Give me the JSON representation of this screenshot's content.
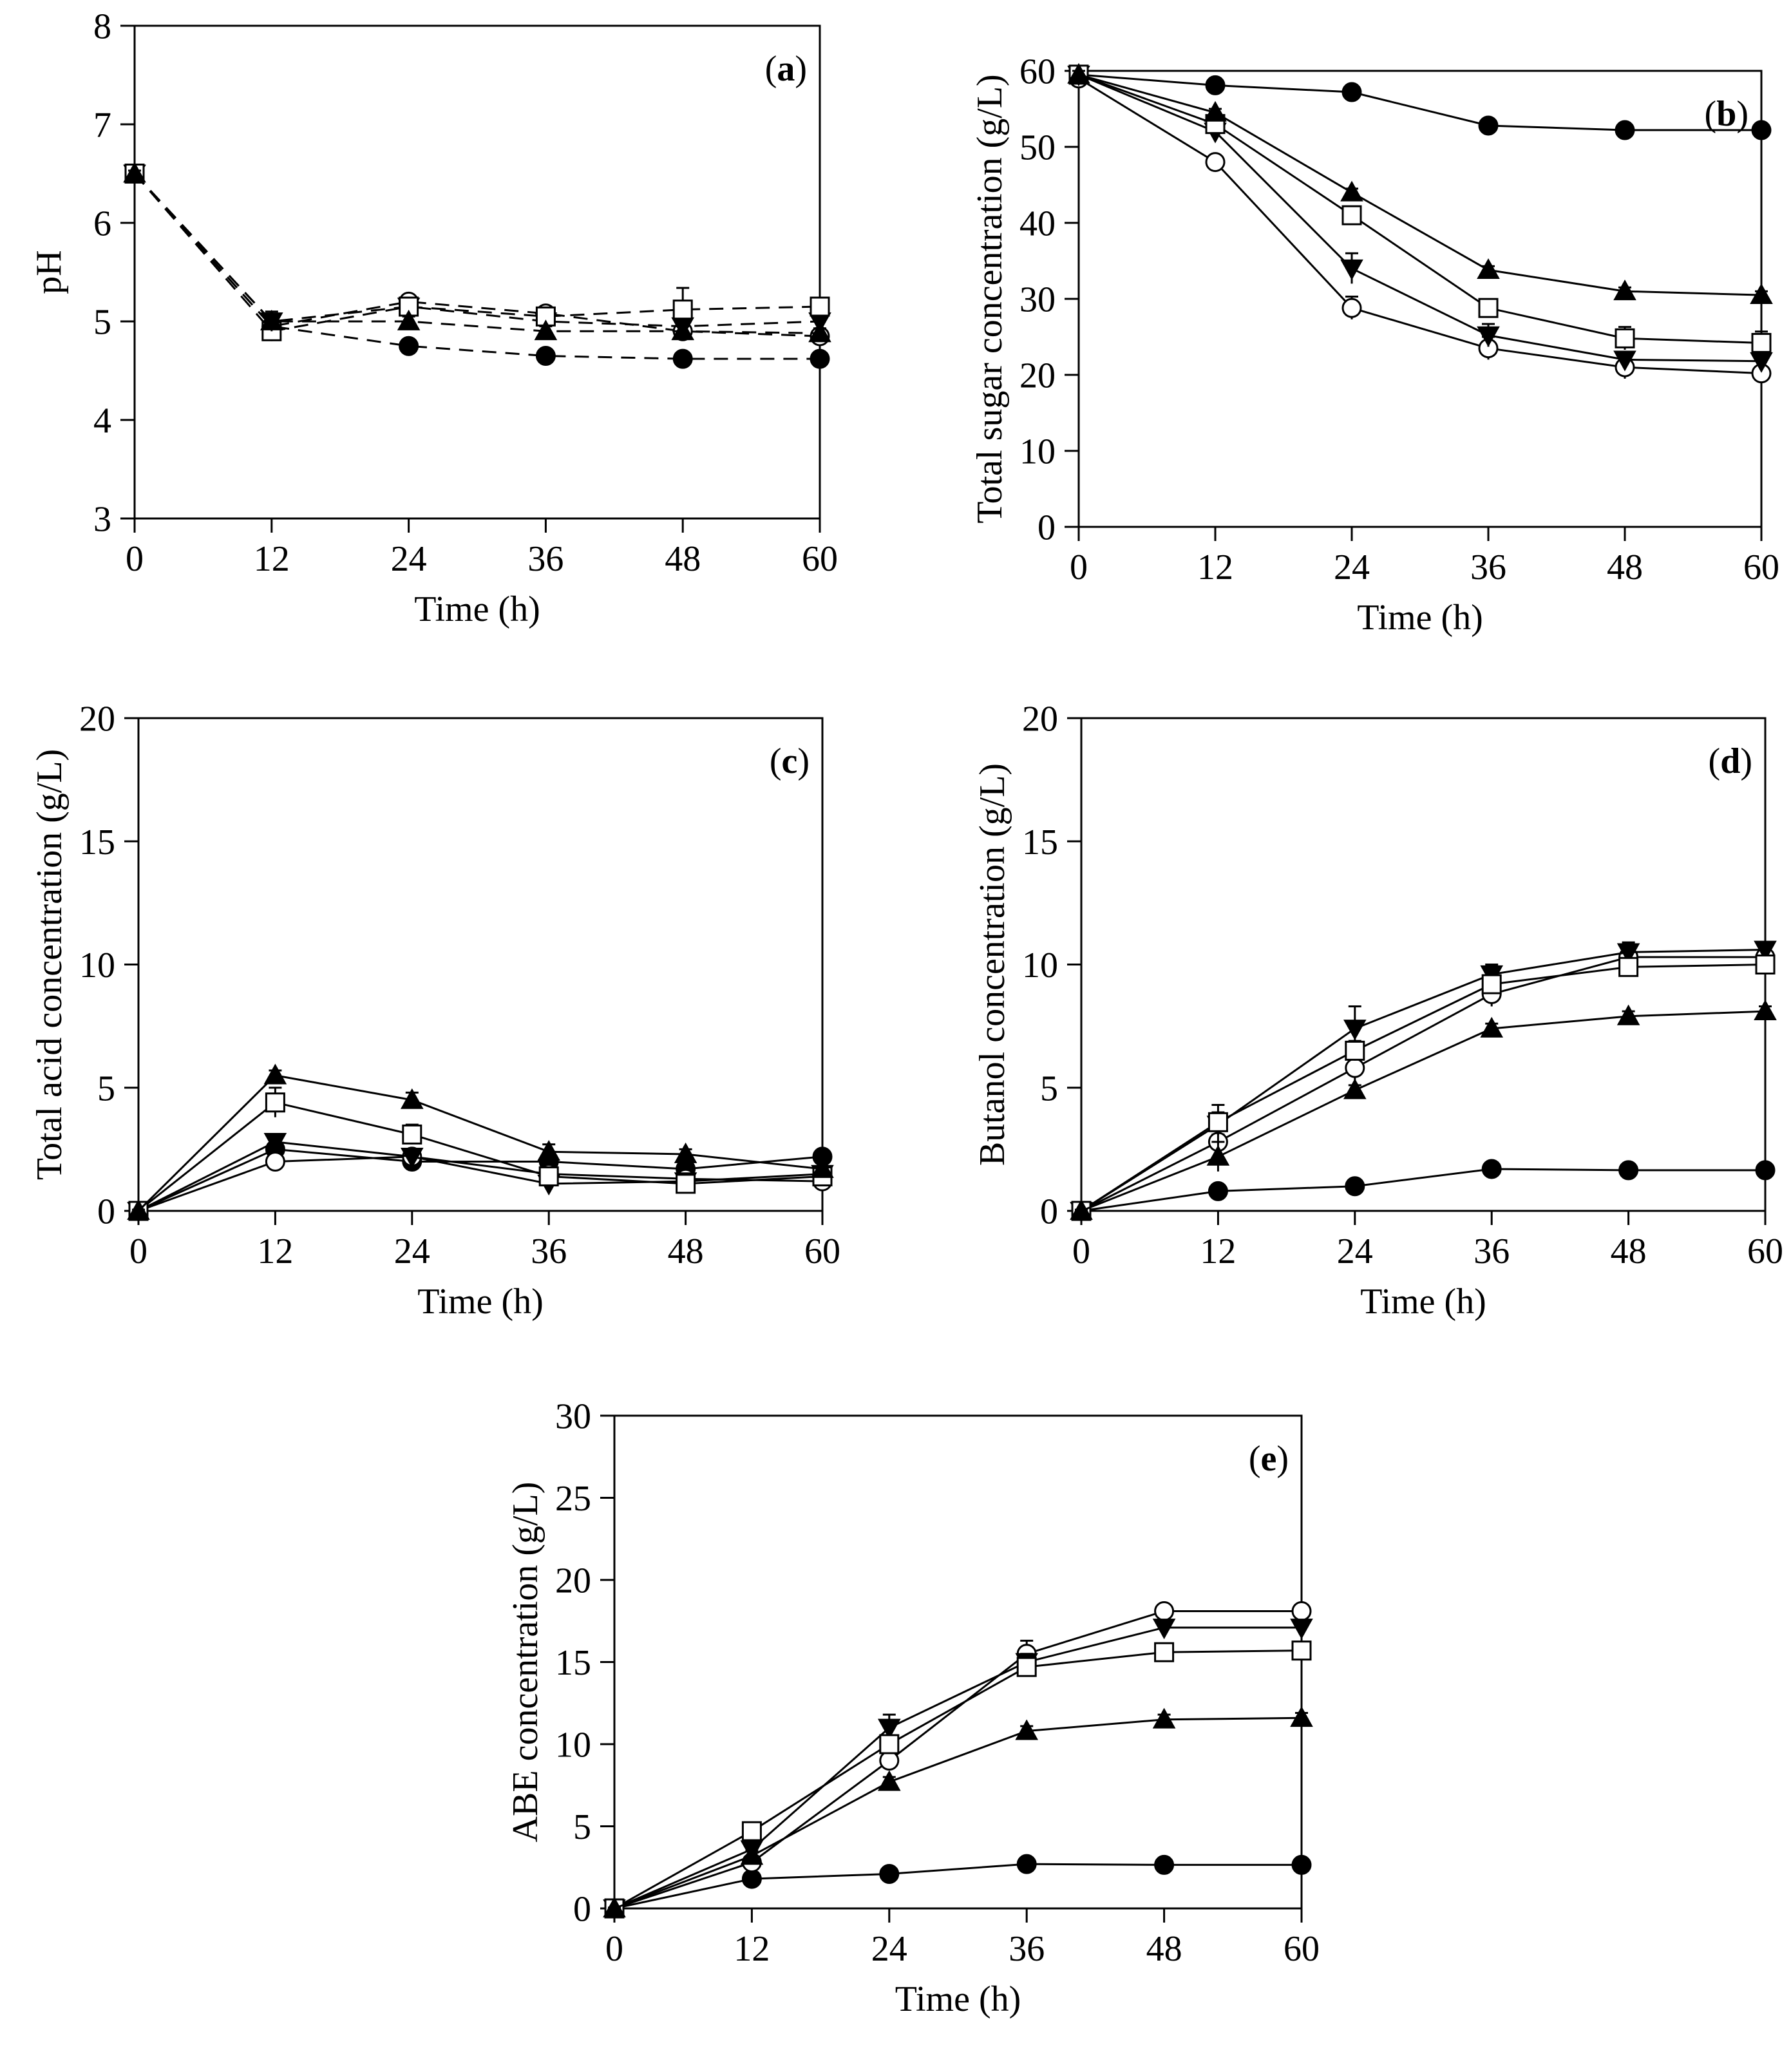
{
  "x_axis": {
    "label": "Time (h)",
    "ticks": [
      0,
      12,
      24,
      36,
      48,
      60
    ],
    "range": [
      0,
      60
    ]
  },
  "chart_data": [
    {
      "id": "a",
      "type": "line",
      "panel_label": "(a)",
      "xlabel": "Time (h)",
      "ylabel": "pH",
      "xlim": [
        0,
        60
      ],
      "ylim": [
        3,
        8
      ],
      "yticks": [
        3,
        4,
        5,
        6,
        7,
        8
      ],
      "line_style": "dashed",
      "x": [
        0,
        12,
        24,
        36,
        48,
        60
      ],
      "series": [
        {
          "marker": "filled-circle",
          "values": [
            6.5,
            4.95,
            4.75,
            4.65,
            4.62,
            4.62
          ],
          "errors": [
            0.03,
            0.05,
            0.03,
            0.03,
            0.03,
            0.03
          ]
        },
        {
          "marker": "open-circle",
          "values": [
            6.5,
            4.95,
            5.2,
            5.08,
            4.9,
            4.85
          ],
          "errors": [
            0.03,
            0.05,
            0.05,
            0.05,
            0.05,
            0.05
          ]
        },
        {
          "marker": "filled-triangle-down",
          "values": [
            6.5,
            5.0,
            5.15,
            5.0,
            4.95,
            5.0
          ],
          "errors": [
            0.03,
            0.05,
            0.05,
            0.05,
            0.05,
            0.05
          ]
        },
        {
          "marker": "open-square",
          "values": [
            6.5,
            4.9,
            5.15,
            5.05,
            5.12,
            5.15
          ],
          "errors": [
            0.03,
            0.1,
            0.05,
            0.05,
            0.22,
            0.05
          ]
        },
        {
          "marker": "filled-triangle-up",
          "values": [
            6.5,
            5.0,
            5.0,
            4.9,
            4.9,
            4.88
          ],
          "errors": [
            0.03,
            0.1,
            0.05,
            0.05,
            0.05,
            0.05
          ]
        }
      ]
    },
    {
      "id": "b",
      "type": "line",
      "panel_label": "(b)",
      "xlabel": "Time (h)",
      "ylabel": "Total sugar concentration (g/L)",
      "xlim": [
        0,
        60
      ],
      "ylim": [
        0,
        60
      ],
      "yticks": [
        0,
        10,
        20,
        30,
        40,
        50,
        60
      ],
      "line_style": "solid",
      "x": [
        0,
        12,
        24,
        36,
        48,
        60
      ],
      "series": [
        {
          "marker": "filled-circle",
          "values": [
            59.5,
            58.1,
            57.2,
            52.8,
            52.2,
            52.2
          ],
          "errors": [
            0.5,
            0.5,
            0.5,
            0.5,
            0.5,
            0.5
          ]
        },
        {
          "marker": "open-circle",
          "values": [
            59.0,
            48.0,
            28.8,
            23.5,
            21.0,
            20.2
          ],
          "errors": [
            0.5,
            0.8,
            1.5,
            1.5,
            1.5,
            0.8
          ]
        },
        {
          "marker": "filled-triangle-down",
          "values": [
            59.5,
            52.0,
            34.0,
            25.2,
            22.0,
            21.8
          ],
          "errors": [
            0.5,
            1.0,
            2.0,
            1.5,
            1.0,
            1.0
          ]
        },
        {
          "marker": "open-square",
          "values": [
            59.5,
            53.0,
            41.0,
            28.8,
            24.8,
            24.2
          ],
          "errors": [
            0.5,
            0.8,
            0.8,
            0.8,
            1.5,
            1.5
          ]
        },
        {
          "marker": "filled-triangle-up",
          "values": [
            59.5,
            54.5,
            44.0,
            33.8,
            31.0,
            30.5
          ],
          "errors": [
            0.5,
            0.5,
            0.5,
            0.5,
            0.5,
            0.5
          ]
        }
      ]
    },
    {
      "id": "c",
      "type": "line",
      "panel_label": "(c)",
      "xlabel": "Time (h)",
      "ylabel": "Total acid concentration (g/L)",
      "xlim": [
        0,
        60
      ],
      "ylim": [
        0,
        20
      ],
      "yticks": [
        0,
        5,
        10,
        15,
        20
      ],
      "line_style": "solid",
      "x": [
        0,
        12,
        24,
        36,
        48,
        60
      ],
      "series": [
        {
          "marker": "filled-circle",
          "values": [
            0,
            2.5,
            2.0,
            2.0,
            1.7,
            2.2
          ],
          "errors": [
            0.05,
            0.1,
            0.1,
            0.1,
            0.1,
            0.1
          ]
        },
        {
          "marker": "open-circle",
          "values": [
            0,
            2.0,
            2.2,
            1.5,
            1.3,
            1.2
          ],
          "errors": [
            0.05,
            0.1,
            0.1,
            0.1,
            0.1,
            0.1
          ]
        },
        {
          "marker": "filled-triangle-down",
          "values": [
            0,
            2.8,
            2.2,
            1.1,
            1.2,
            1.5
          ],
          "errors": [
            0.05,
            0.3,
            0.1,
            0.1,
            0.1,
            0.1
          ]
        },
        {
          "marker": "open-square",
          "values": [
            0,
            4.4,
            3.1,
            1.4,
            1.1,
            1.4
          ],
          "errors": [
            0.05,
            0.6,
            0.4,
            0.1,
            0.1,
            0.1
          ]
        },
        {
          "marker": "filled-triangle-up",
          "values": [
            0,
            5.5,
            4.5,
            2.4,
            2.3,
            1.7
          ],
          "errors": [
            0.05,
            0.2,
            0.3,
            0.3,
            0.2,
            0.1
          ]
        }
      ]
    },
    {
      "id": "d",
      "type": "line",
      "panel_label": "(d)",
      "xlabel": "Time (h)",
      "ylabel": "Butanol concentration (g/L)",
      "xlim": [
        0,
        60
      ],
      "ylim": [
        0,
        20
      ],
      "yticks": [
        0,
        5,
        10,
        15,
        20
      ],
      "line_style": "solid",
      "x": [
        0,
        12,
        24,
        36,
        48,
        60
      ],
      "series": [
        {
          "marker": "filled-circle",
          "values": [
            0,
            0.8,
            1.0,
            1.7,
            1.65,
            1.65
          ],
          "errors": [
            0.05,
            0.1,
            0.1,
            0.1,
            0.1,
            0.1
          ]
        },
        {
          "marker": "open-circle",
          "values": [
            0,
            2.8,
            5.8,
            8.8,
            10.3,
            10.3
          ],
          "errors": [
            0.05,
            0.3,
            0.5,
            0.5,
            0.3,
            0.3
          ]
        },
        {
          "marker": "filled-triangle-down",
          "values": [
            0,
            3.5,
            7.4,
            9.6,
            10.5,
            10.6
          ],
          "errors": [
            0.05,
            0.8,
            0.9,
            0.4,
            0.4,
            0.3
          ]
        },
        {
          "marker": "open-square",
          "values": [
            0,
            3.6,
            6.5,
            9.2,
            9.9,
            10.0
          ],
          "errors": [
            0.05,
            0.4,
            0.4,
            0.3,
            0.3,
            0.3
          ]
        },
        {
          "marker": "filled-triangle-up",
          "values": [
            0,
            2.2,
            4.9,
            7.4,
            7.9,
            8.1
          ],
          "errors": [
            0.05,
            0.6,
            0.2,
            0.2,
            0.2,
            0.2
          ]
        }
      ]
    },
    {
      "id": "e",
      "type": "line",
      "panel_label": "(e)",
      "xlabel": "Time (h)",
      "ylabel": "ABE concentration (g/L)",
      "xlim": [
        0,
        60
      ],
      "ylim": [
        0,
        30
      ],
      "yticks": [
        0,
        5,
        10,
        15,
        20,
        25,
        30
      ],
      "line_style": "solid",
      "x": [
        0,
        12,
        24,
        36,
        48,
        60
      ],
      "series": [
        {
          "marker": "filled-circle",
          "values": [
            0,
            1.8,
            2.1,
            2.7,
            2.65,
            2.65
          ],
          "errors": [
            0.05,
            0.1,
            0.1,
            0.1,
            0.1,
            0.1
          ]
        },
        {
          "marker": "open-circle",
          "values": [
            0,
            2.8,
            9.0,
            15.5,
            18.1,
            18.1
          ],
          "errors": [
            0.05,
            0.3,
            0.5,
            0.8,
            0.3,
            0.3
          ]
        },
        {
          "marker": "filled-triangle-down",
          "values": [
            0,
            3.6,
            11.0,
            15.0,
            17.1,
            17.1
          ],
          "errors": [
            0.05,
            0.5,
            0.8,
            0.5,
            0.3,
            0.3
          ]
        },
        {
          "marker": "open-square",
          "values": [
            0,
            4.7,
            10.0,
            14.7,
            15.6,
            15.7
          ],
          "errors": [
            0.05,
            0.3,
            0.3,
            0.3,
            0.3,
            0.3
          ]
        },
        {
          "marker": "filled-triangle-up",
          "values": [
            0,
            3.2,
            7.7,
            10.8,
            11.5,
            11.6
          ],
          "errors": [
            0.05,
            0.3,
            0.3,
            0.3,
            0.3,
            0.3
          ]
        }
      ]
    }
  ]
}
